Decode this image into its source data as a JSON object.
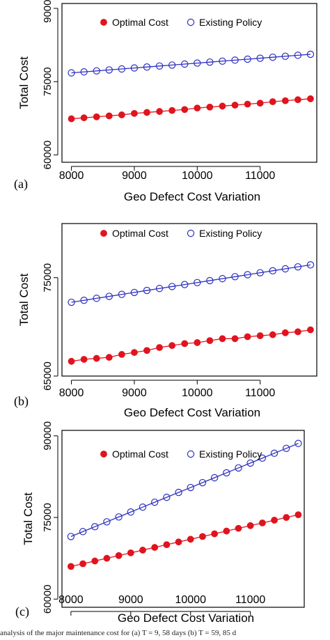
{
  "caption": "analysis of the major maintenance cost for (a) T = 9, 58 days (b) T = 59, 85 d",
  "colors": {
    "optimal": "#e0141e",
    "existing": "#2b2fbf",
    "axis": "#000000"
  },
  "chart_data": [
    {
      "panel_label": "(a)",
      "type": "scatter",
      "xlabel": "Geo Defect Cost Variation",
      "ylabel": "Total Cost",
      "xlim": [
        7850,
        11900
      ],
      "ylim": [
        58500,
        91000
      ],
      "xticks": [
        8000,
        9000,
        10000,
        11000
      ],
      "yticks": [
        60000,
        75000,
        90000
      ],
      "legend_position": "top",
      "x": [
        8000,
        8200,
        8400,
        8600,
        8800,
        9000,
        9200,
        9400,
        9600,
        9800,
        10000,
        10200,
        10400,
        10600,
        10800,
        11000,
        11200,
        11400,
        11600,
        11800
      ],
      "series": [
        {
          "name": "Optimal Cost",
          "marker": "filled-circle",
          "values": [
            67400,
            67600,
            67800,
            68000,
            68200,
            68500,
            68700,
            68900,
            69100,
            69300,
            69600,
            69800,
            70000,
            70200,
            70400,
            70600,
            70900,
            71100,
            71300,
            71500
          ]
        },
        {
          "name": "Existing Policy",
          "marker": "open-circle",
          "values": [
            76800,
            77000,
            77200,
            77400,
            77600,
            77800,
            78000,
            78200,
            78400,
            78600,
            78800,
            79000,
            79200,
            79400,
            79600,
            79800,
            80000,
            80200,
            80400,
            80600
          ]
        }
      ]
    },
    {
      "panel_label": "(b)",
      "type": "scatter",
      "xlabel": "Geo Defect Cost Variation",
      "ylabel": "Total Cost",
      "xlim": [
        7850,
        11900
      ],
      "ylim": [
        65000,
        80500
      ],
      "xticks": [
        8000,
        9000,
        10000,
        11000
      ],
      "yticks": [
        65000,
        75000
      ],
      "legend_position": "top",
      "x": [
        8000,
        8200,
        8400,
        8600,
        8800,
        9000,
        9200,
        9400,
        9600,
        9800,
        10000,
        10200,
        10400,
        10600,
        10800,
        11000,
        11200,
        11400,
        11600,
        11800
      ],
      "series": [
        {
          "name": "Optimal Cost",
          "marker": "filled-circle",
          "values": [
            66500,
            66700,
            66800,
            66900,
            67200,
            67400,
            67600,
            67900,
            68100,
            68300,
            68400,
            68600,
            68800,
            68800,
            69000,
            69100,
            69200,
            69400,
            69500,
            69700
          ]
        },
        {
          "name": "Existing Policy",
          "marker": "open-circle",
          "values": [
            72500,
            72700,
            72900,
            73100,
            73300,
            73500,
            73700,
            73900,
            74100,
            74300,
            74500,
            74700,
            74900,
            75100,
            75300,
            75500,
            75700,
            75900,
            76100,
            76300
          ]
        }
      ]
    },
    {
      "panel_label": "(c)",
      "type": "scatter",
      "xlabel": "Geo Defect Cost Variation",
      "ylabel": "Total Cost",
      "xlim": [
        7850,
        11900
      ],
      "ylim": [
        58500,
        91000
      ],
      "xticks": [
        8000,
        9000,
        10000,
        11000
      ],
      "yticks": [
        60000,
        75000,
        90000
      ],
      "legend_position": "top",
      "x": [
        8000,
        8200,
        8400,
        8600,
        8800,
        9000,
        9200,
        9400,
        9600,
        9800,
        10000,
        10200,
        10400,
        10600,
        10800,
        11000,
        11200,
        11400,
        11600,
        11800
      ],
      "series": [
        {
          "name": "Optimal Cost",
          "marker": "filled-circle",
          "values": [
            66000,
            66500,
            67000,
            67500,
            68000,
            68500,
            69000,
            69500,
            70000,
            70500,
            71000,
            71500,
            72000,
            72500,
            73000,
            73500,
            74000,
            74500,
            75000,
            75500
          ]
        },
        {
          "name": "Existing Policy",
          "marker": "open-circle",
          "values": [
            71500,
            72400,
            73300,
            74200,
            75100,
            76000,
            76900,
            77800,
            78700,
            79600,
            80500,
            81400,
            82300,
            83200,
            84100,
            85000,
            85900,
            86800,
            87700,
            88600
          ]
        }
      ]
    }
  ]
}
